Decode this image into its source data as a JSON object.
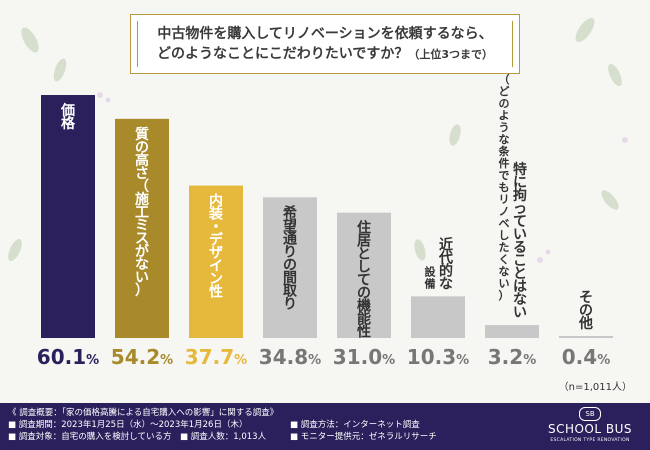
{
  "title": {
    "line1": "中古物件を購入してリノベーションを依頼するなら、",
    "line2": "どのようなことにこだわりたいですか？",
    "line2_suffix": "（上位3つまで）"
  },
  "chart_data": {
    "type": "bar",
    "categories": [
      "価格",
      "質の高さ（施工ミスがない）",
      "内装・デザイン性",
      "希望通りの間取り",
      "住居としての機能性",
      "近代的な設備",
      "特に拘っていることはない（どのような条件でもリノベしたくない）",
      "その他"
    ],
    "label_lines": [
      [
        "価格"
      ],
      [
        "質の高さ（施工ミスがない）"
      ],
      [
        "内装・デザイン性"
      ],
      [
        "希望通りの間取り"
      ],
      [
        "住居としての機能性"
      ],
      [
        "近代的な",
        "設備"
      ],
      [
        "特に拘っていることはない",
        "（どのような条件でもリノベしたくない）"
      ],
      [
        "その他"
      ]
    ],
    "values": [
      60.1,
      54.2,
      37.7,
      34.8,
      31.0,
      10.3,
      3.2,
      0.4
    ],
    "value_labels": [
      "60.1",
      "54.2",
      "37.7",
      "34.8",
      "31.0",
      "10.3",
      "3.2",
      "0.4"
    ],
    "unit": "%",
    "colors": [
      "#2b1f5c",
      "#a88a2a",
      "#e6b83c",
      "#c8c8c8",
      "#c8c8c8",
      "#c8c8c8",
      "#c8c8c8",
      "#c8c8c8"
    ],
    "value_colors": [
      "#2b1f5c",
      "#a88a2a",
      "#e6b83c",
      "#777777",
      "#777777",
      "#777777",
      "#777777",
      "#777777"
    ],
    "ylim": [
      0,
      60.1
    ],
    "grid": false,
    "legend": "none"
  },
  "n_note": "（n=1,011人）",
  "footer": {
    "heading": "《 調査概要：「家の価格高騰による自宅購入への影響」に関する調査》",
    "period": "■ 調査期間：2023年1月25日（水）〜2023年1月26日（木）",
    "method": "■ 調査方法：インターネット調査",
    "target": "■ 調査対象：自宅の購入を検討している方",
    "count": "■ 調査人数：1,013人",
    "provider": "■ モニター提供元：ゼネラルリサーチ"
  },
  "logo": {
    "badge": "SB",
    "name": "SCHOOL BUS",
    "tagline": "ESCALATION TYPE RENOVATION"
  },
  "colors": {
    "accent_navy": "#2b1f5c",
    "accent_gold": "#b89a3c"
  }
}
